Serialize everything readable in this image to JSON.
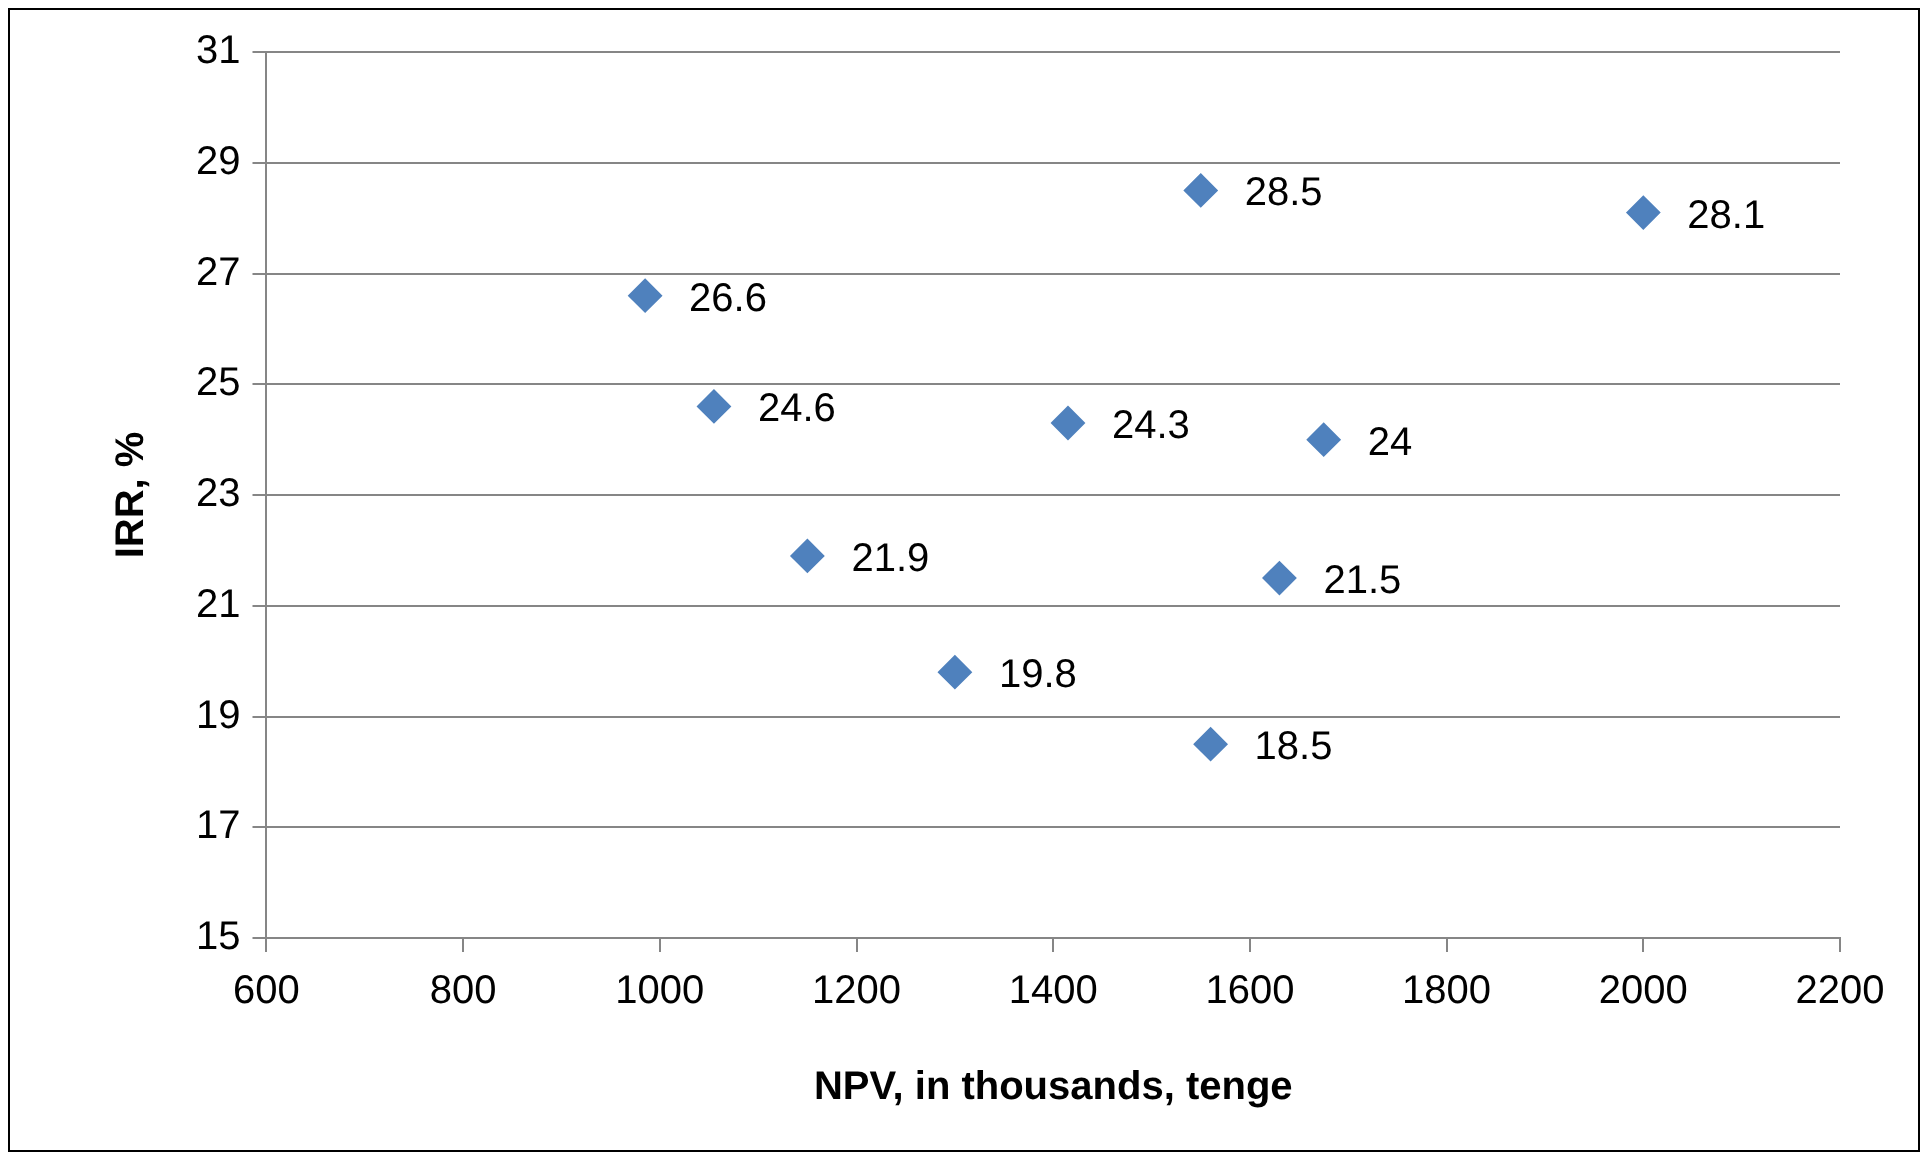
{
  "chart_data": {
    "type": "scatter",
    "xlabel": "NPV, in thousands, tenge",
    "ylabel": "IRR, %",
    "x": [
      985,
      1055,
      1150,
      1300,
      1415,
      1550,
      1560,
      1630,
      1675,
      2000
    ],
    "series": [
      {
        "color": "#4f81bd",
        "values": [
          26.6,
          24.6,
          21.9,
          19.8,
          24.3,
          28.5,
          18.5,
          21.5,
          24,
          28.1
        ]
      }
    ],
    "xlim": [
      600,
      2200
    ],
    "xticks": [
      600,
      800,
      1000,
      1200,
      1400,
      1600,
      1800,
      2000,
      2200
    ],
    "ylim": [
      15,
      31
    ],
    "yticks": [
      15,
      17,
      19,
      21,
      23,
      25,
      27,
      29,
      31
    ],
    "grid": "y",
    "legend": false,
    "marker": "diamond",
    "data_labels": true
  }
}
